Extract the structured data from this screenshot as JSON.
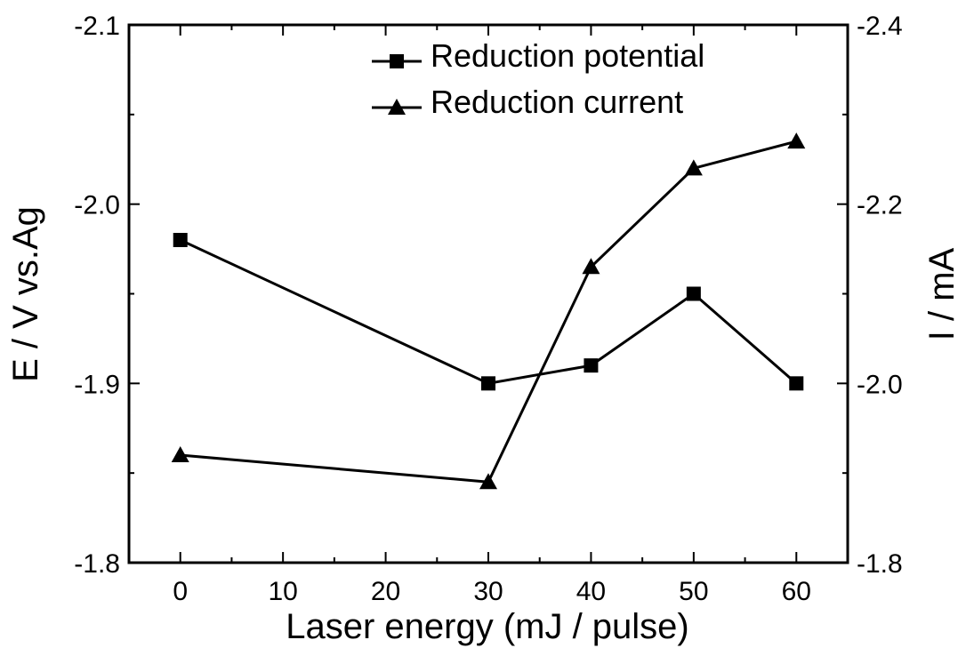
{
  "chart_data": {
    "type": "line",
    "xlabel": "Laser energy (mJ / pulse)",
    "ylabel_left": "E / V vs.Ag",
    "ylabel_right": "I / mA",
    "x_ticks": [
      "0",
      "10",
      "20",
      "30",
      "40",
      "50",
      "60"
    ],
    "y_left_ticks": [
      "-2.1",
      "-2.0",
      "-1.9",
      "-1.8"
    ],
    "y_right_ticks": [
      "-2.4",
      "-2.2",
      "-2.0",
      "-1.8"
    ],
    "xlim": [
      -5,
      65
    ],
    "ylim_left": [
      -1.8,
      -2.1
    ],
    "ylim_right": [
      -1.8,
      -2.4
    ],
    "x": [
      0,
      30,
      40,
      50,
      60
    ],
    "series": [
      {
        "name": "Reduction potential",
        "axis": "left",
        "marker": "square",
        "values": [
          -1.98,
          -1.9,
          -1.91,
          -1.95,
          -1.9
        ]
      },
      {
        "name": "Reduction current",
        "axis": "right",
        "marker": "triangle",
        "values": [
          -1.92,
          -1.89,
          -2.13,
          -2.24,
          -2.27
        ]
      }
    ],
    "legend": "top-right",
    "grid": false,
    "line_color": "#000000"
  }
}
